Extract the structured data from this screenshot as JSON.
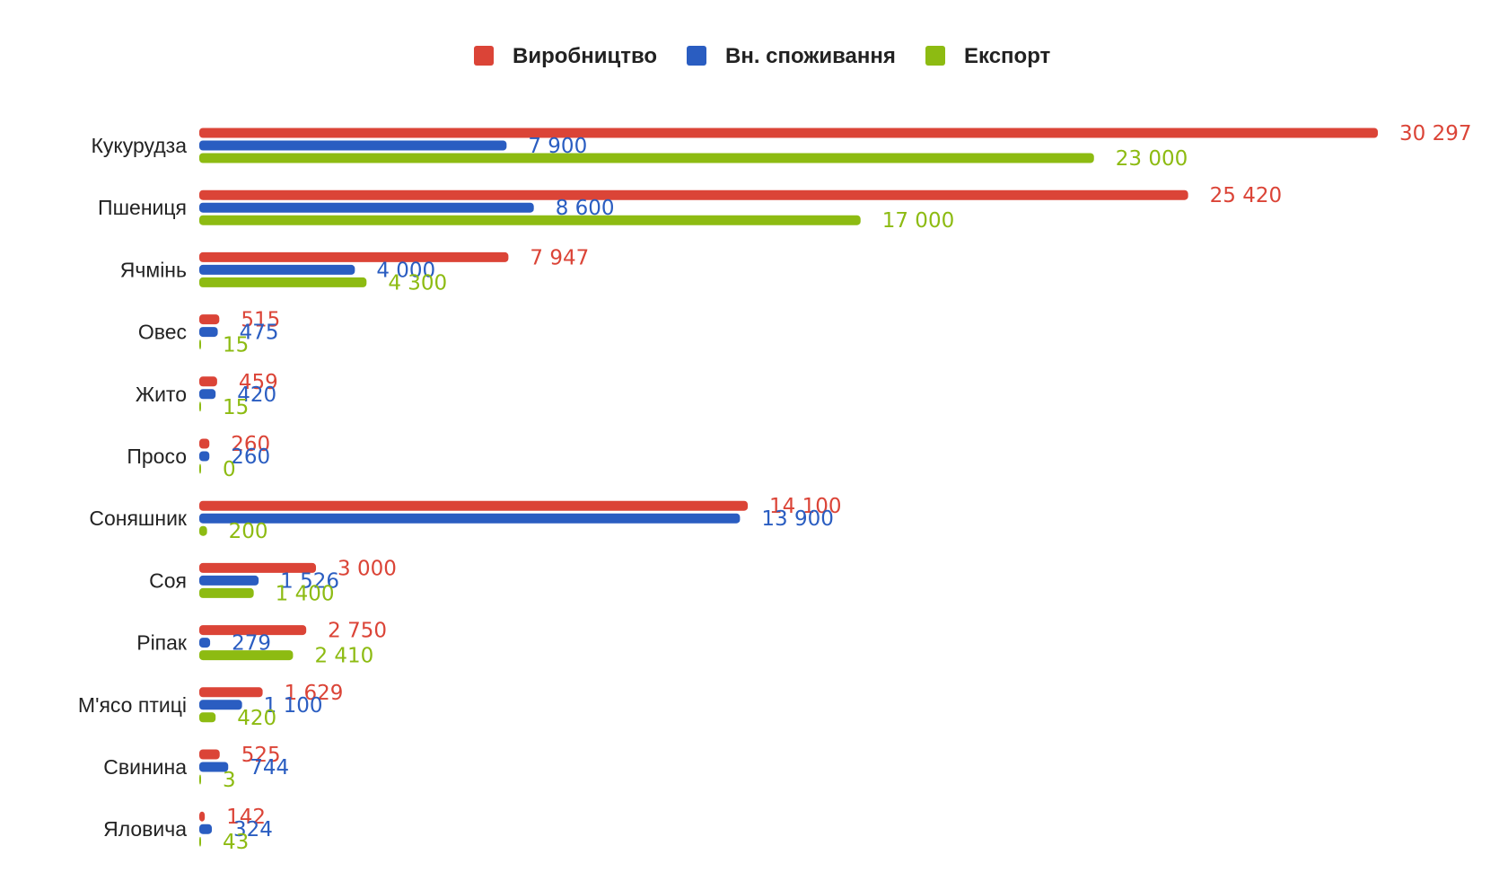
{
  "chart_data": {
    "type": "bar",
    "orientation": "horizontal",
    "title": "",
    "xlabel": "",
    "ylabel": "",
    "xlim": [
      0,
      30297
    ],
    "grid": false,
    "legend_position": "top-center",
    "categories": [
      "Кукурудза",
      "Пшениця",
      "Ячмінь",
      "Овес",
      "Жито",
      "Просо",
      "Соняшник",
      "Соя",
      "Ріпак",
      "М'ясо птиці",
      "Свинина",
      "Яловича"
    ],
    "series": [
      {
        "name": "Виробництво",
        "color": "#db4437",
        "values": [
          30297,
          25420,
          7947,
          515,
          459,
          260,
          14100,
          3000,
          2750,
          1629,
          525,
          142
        ],
        "labels": [
          "30 297",
          "25 420",
          "7 947",
          "515",
          "459",
          "260",
          "14 100",
          "3 000",
          "2 750",
          "1 629",
          "525",
          "142"
        ]
      },
      {
        "name": "Вн. споживання",
        "color": "#2a5dc1",
        "values": [
          7900,
          8600,
          4000,
          475,
          420,
          260,
          13900,
          1526,
          279,
          1100,
          744,
          324
        ],
        "labels": [
          "7 900",
          "8 600",
          "4 000",
          "475",
          "420",
          "260",
          "13 900",
          "1 526",
          "279",
          "1 100",
          "744",
          "324"
        ]
      },
      {
        "name": "Експорт",
        "color": "#8dbb12",
        "values": [
          23000,
          17000,
          4300,
          15,
          15,
          0,
          200,
          1400,
          2410,
          420,
          3,
          43
        ],
        "labels": [
          "23 000",
          "17 000",
          "4 300",
          "15",
          "15",
          "0",
          "200",
          "1 400",
          "2 410",
          "420",
          "3",
          "43"
        ]
      }
    ]
  }
}
